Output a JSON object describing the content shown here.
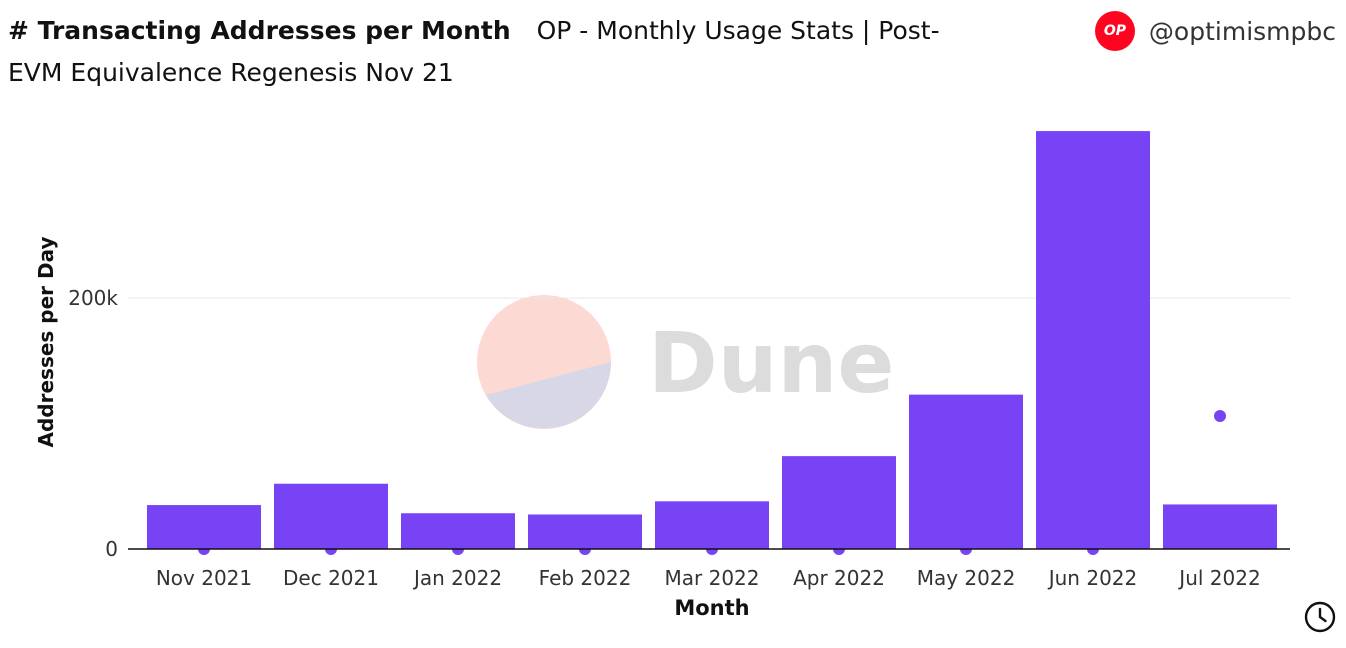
{
  "header": {
    "title": "# Transacting Addresses per Month",
    "subtitle": "OP - Monthly Usage Stats | Post- EVM Equivalence Regenesis Nov 21"
  },
  "brand": {
    "logo_text": "OP",
    "handle": "@optimismpbc",
    "logo_color": "#ff0420"
  },
  "watermark": {
    "text": "Dune"
  },
  "icons": {
    "clock": "clock-icon"
  },
  "colors": {
    "bar": "#7743f5",
    "dot": "#7743f5"
  },
  "chart_data": {
    "type": "bar",
    "xlabel": "Month",
    "ylabel": "Addresses per Day",
    "categories": [
      "Nov 2021",
      "Dec 2021",
      "Jan 2022",
      "Feb 2022",
      "Mar 2022",
      "Apr 2022",
      "May 2022",
      "Jun 2022",
      "Jul 2022"
    ],
    "series": [
      {
        "type": "bar",
        "values": [
          35000,
          52000,
          28500,
          27500,
          38000,
          74000,
          123000,
          333000,
          35500
        ]
      },
      {
        "type": "scatter",
        "values": [
          0,
          0,
          0,
          0,
          0,
          0,
          0,
          0,
          106000
        ]
      }
    ],
    "yticks": [
      0,
      200000
    ],
    "ytick_labels": [
      "0",
      "200k"
    ],
    "ylim": [
      0,
      340000
    ],
    "grid": true
  }
}
